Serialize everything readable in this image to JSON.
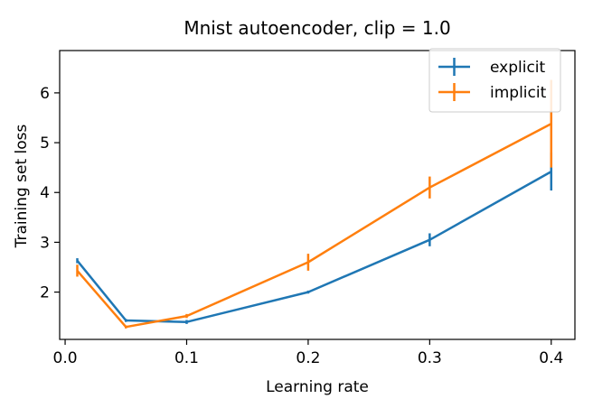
{
  "chart_data": {
    "type": "line",
    "title": "Mnist autoencoder, clip = 1.0",
    "xlabel": "Learning rate",
    "ylabel": "Training set loss",
    "xlim": [
      -0.0045,
      0.4195
    ],
    "ylim": [
      1.05,
      6.85
    ],
    "xticks": [
      0.0,
      0.1,
      0.2,
      0.3,
      0.4
    ],
    "xtick_labels": [
      "0.0",
      "0.1",
      "0.2",
      "0.3",
      "0.4"
    ],
    "yticks": [
      2,
      3,
      4,
      5,
      6
    ],
    "ytick_labels": [
      "2",
      "3",
      "4",
      "5",
      "6"
    ],
    "grid": false,
    "legend_position": "upper right",
    "x": [
      0.01,
      0.05,
      0.1,
      0.2,
      0.3,
      0.4
    ],
    "series": [
      {
        "name": "explicit",
        "color": "#1f77b4",
        "values": [
          2.63,
          1.43,
          1.4,
          2.0,
          3.05,
          4.42
        ],
        "errors": [
          0.05,
          0.03,
          0.04,
          0.03,
          0.13,
          0.38
        ]
      },
      {
        "name": "implicit",
        "color": "#ff7f0e",
        "values": [
          2.43,
          1.3,
          1.52,
          2.6,
          4.1,
          5.38
        ],
        "errors": [
          0.12,
          0.03,
          0.04,
          0.17,
          0.22,
          0.88
        ]
      }
    ]
  }
}
